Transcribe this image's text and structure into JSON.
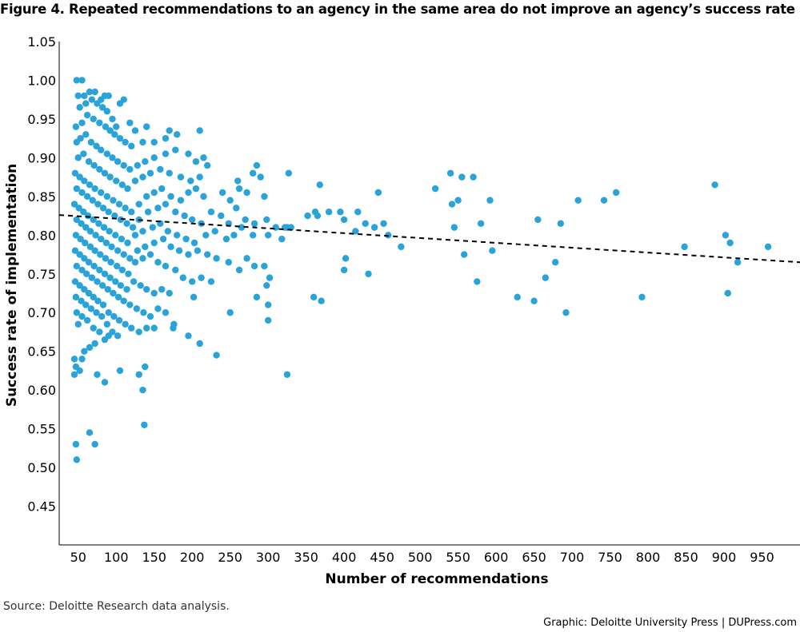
{
  "figure": {
    "title": "Figure 4. Repeated recommendations to an agency in the same area do not improve an agency’s success rate",
    "source": "Source: Deloitte Research data analysis.",
    "credit": "Graphic: Deloitte University Press  |  DUPress.com"
  },
  "chart_data": {
    "type": "scatter",
    "title": "Figure 4. Repeated recommendations to an agency in the same area do not improve an agency’s success rate",
    "xlabel": "Number of recommendations",
    "ylabel": "Success rate of implementation",
    "xlim": [
      25,
      1000
    ],
    "ylim": [
      0.4,
      1.05
    ],
    "xticks": [
      50,
      100,
      150,
      200,
      250,
      300,
      350,
      400,
      450,
      500,
      550,
      600,
      650,
      700,
      750,
      800,
      850,
      900,
      950
    ],
    "yticks": [
      "0.45",
      "0.50",
      "0.55",
      "0.60",
      "0.65",
      "0.70",
      "0.75",
      "0.80",
      "0.85",
      "0.90",
      "0.95",
      "1.00",
      "1.05"
    ],
    "grid": false,
    "colors": {
      "points": "#29a3d8",
      "trendline": "#000000"
    },
    "trendline": {
      "style": "dashed",
      "x": [
        25,
        1000
      ],
      "y": [
        0.826,
        0.765
      ]
    },
    "points": [
      [
        48,
        1.0
      ],
      [
        55,
        1.0
      ],
      [
        50,
        0.98
      ],
      [
        58,
        0.98
      ],
      [
        65,
        0.985
      ],
      [
        72,
        0.985
      ],
      [
        80,
        0.975
      ],
      [
        85,
        0.98
      ],
      [
        90,
        0.98
      ],
      [
        105,
        0.97
      ],
      [
        110,
        0.975
      ],
      [
        52,
        0.965
      ],
      [
        60,
        0.97
      ],
      [
        68,
        0.975
      ],
      [
        75,
        0.97
      ],
      [
        82,
        0.965
      ],
      [
        88,
        0.96
      ],
      [
        95,
        0.95
      ],
      [
        100,
        0.94
      ],
      [
        118,
        0.945
      ],
      [
        125,
        0.935
      ],
      [
        140,
        0.94
      ],
      [
        47,
        0.94
      ],
      [
        55,
        0.945
      ],
      [
        62,
        0.955
      ],
      [
        70,
        0.95
      ],
      [
        78,
        0.945
      ],
      [
        86,
        0.94
      ],
      [
        92,
        0.935
      ],
      [
        98,
        0.93
      ],
      [
        105,
        0.925
      ],
      [
        112,
        0.92
      ],
      [
        120,
        0.915
      ],
      [
        135,
        0.92
      ],
      [
        150,
        0.92
      ],
      [
        165,
        0.925
      ],
      [
        170,
        0.935
      ],
      [
        180,
        0.93
      ],
      [
        210,
        0.935
      ],
      [
        48,
        0.92
      ],
      [
        53,
        0.925
      ],
      [
        60,
        0.93
      ],
      [
        67,
        0.92
      ],
      [
        74,
        0.915
      ],
      [
        80,
        0.91
      ],
      [
        88,
        0.905
      ],
      [
        95,
        0.9
      ],
      [
        102,
        0.895
      ],
      [
        110,
        0.89
      ],
      [
        118,
        0.885
      ],
      [
        128,
        0.89
      ],
      [
        138,
        0.895
      ],
      [
        150,
        0.9
      ],
      [
        165,
        0.905
      ],
      [
        178,
        0.91
      ],
      [
        195,
        0.905
      ],
      [
        205,
        0.895
      ],
      [
        215,
        0.9
      ],
      [
        50,
        0.9
      ],
      [
        57,
        0.905
      ],
      [
        64,
        0.895
      ],
      [
        71,
        0.89
      ],
      [
        78,
        0.885
      ],
      [
        85,
        0.88
      ],
      [
        92,
        0.875
      ],
      [
        100,
        0.87
      ],
      [
        108,
        0.865
      ],
      [
        115,
        0.86
      ],
      [
        125,
        0.87
      ],
      [
        135,
        0.875
      ],
      [
        145,
        0.88
      ],
      [
        158,
        0.885
      ],
      [
        170,
        0.88
      ],
      [
        185,
        0.875
      ],
      [
        198,
        0.87
      ],
      [
        210,
        0.875
      ],
      [
        220,
        0.89
      ],
      [
        260,
        0.87
      ],
      [
        280,
        0.88
      ],
      [
        285,
        0.89
      ],
      [
        290,
        0.875
      ],
      [
        46,
        0.88
      ],
      [
        52,
        0.875
      ],
      [
        58,
        0.87
      ],
      [
        65,
        0.865
      ],
      [
        72,
        0.86
      ],
      [
        80,
        0.855
      ],
      [
        88,
        0.85
      ],
      [
        96,
        0.845
      ],
      [
        104,
        0.84
      ],
      [
        112,
        0.835
      ],
      [
        120,
        0.83
      ],
      [
        130,
        0.84
      ],
      [
        140,
        0.85
      ],
      [
        150,
        0.855
      ],
      [
        160,
        0.86
      ],
      [
        172,
        0.85
      ],
      [
        185,
        0.845
      ],
      [
        195,
        0.855
      ],
      [
        205,
        0.86
      ],
      [
        215,
        0.85
      ],
      [
        240,
        0.855
      ],
      [
        250,
        0.845
      ],
      [
        262,
        0.86
      ],
      [
        272,
        0.855
      ],
      [
        295,
        0.85
      ],
      [
        48,
        0.86
      ],
      [
        55,
        0.855
      ],
      [
        62,
        0.85
      ],
      [
        69,
        0.845
      ],
      [
        76,
        0.84
      ],
      [
        83,
        0.835
      ],
      [
        90,
        0.83
      ],
      [
        98,
        0.825
      ],
      [
        106,
        0.82
      ],
      [
        114,
        0.815
      ],
      [
        122,
        0.81
      ],
      [
        130,
        0.82
      ],
      [
        142,
        0.83
      ],
      [
        155,
        0.835
      ],
      [
        165,
        0.84
      ],
      [
        178,
        0.83
      ],
      [
        190,
        0.825
      ],
      [
        200,
        0.82
      ],
      [
        212,
        0.815
      ],
      [
        225,
        0.83
      ],
      [
        238,
        0.825
      ],
      [
        248,
        0.815
      ],
      [
        258,
        0.835
      ],
      [
        270,
        0.82
      ],
      [
        282,
        0.815
      ],
      [
        298,
        0.82
      ],
      [
        310,
        0.81
      ],
      [
        45,
        0.84
      ],
      [
        51,
        0.835
      ],
      [
        57,
        0.83
      ],
      [
        63,
        0.825
      ],
      [
        70,
        0.82
      ],
      [
        77,
        0.815
      ],
      [
        84,
        0.81
      ],
      [
        91,
        0.805
      ],
      [
        99,
        0.8
      ],
      [
        107,
        0.795
      ],
      [
        115,
        0.79
      ],
      [
        125,
        0.8
      ],
      [
        135,
        0.805
      ],
      [
        148,
        0.81
      ],
      [
        158,
        0.815
      ],
      [
        168,
        0.805
      ],
      [
        180,
        0.8
      ],
      [
        192,
        0.795
      ],
      [
        203,
        0.79
      ],
      [
        218,
        0.8
      ],
      [
        230,
        0.805
      ],
      [
        245,
        0.795
      ],
      [
        255,
        0.8
      ],
      [
        265,
        0.81
      ],
      [
        280,
        0.8
      ],
      [
        300,
        0.8
      ],
      [
        318,
        0.795
      ],
      [
        322,
        0.81
      ],
      [
        352,
        0.825
      ],
      [
        365,
        0.825
      ],
      [
        380,
        0.83
      ],
      [
        400,
        0.82
      ],
      [
        418,
        0.83
      ],
      [
        428,
        0.815
      ],
      [
        440,
        0.81
      ],
      [
        452,
        0.815
      ],
      [
        458,
        0.8
      ],
      [
        475,
        0.785
      ],
      [
        48,
        0.82
      ],
      [
        54,
        0.815
      ],
      [
        60,
        0.81
      ],
      [
        66,
        0.805
      ],
      [
        73,
        0.8
      ],
      [
        80,
        0.795
      ],
      [
        87,
        0.79
      ],
      [
        94,
        0.785
      ],
      [
        102,
        0.78
      ],
      [
        110,
        0.775
      ],
      [
        118,
        0.77
      ],
      [
        128,
        0.78
      ],
      [
        138,
        0.785
      ],
      [
        150,
        0.79
      ],
      [
        162,
        0.795
      ],
      [
        172,
        0.785
      ],
      [
        183,
        0.78
      ],
      [
        195,
        0.775
      ],
      [
        207,
        0.78
      ],
      [
        220,
        0.775
      ],
      [
        232,
        0.77
      ],
      [
        248,
        0.765
      ],
      [
        262,
        0.755
      ],
      [
        282,
        0.76
      ],
      [
        295,
        0.76
      ],
      [
        302,
        0.745
      ],
      [
        330,
        0.81
      ],
      [
        445,
        0.855
      ],
      [
        415,
        0.805
      ],
      [
        47,
        0.8
      ],
      [
        53,
        0.795
      ],
      [
        59,
        0.79
      ],
      [
        66,
        0.785
      ],
      [
        72,
        0.78
      ],
      [
        79,
        0.775
      ],
      [
        86,
        0.77
      ],
      [
        93,
        0.765
      ],
      [
        101,
        0.76
      ],
      [
        108,
        0.755
      ],
      [
        116,
        0.75
      ],
      [
        125,
        0.765
      ],
      [
        135,
        0.77
      ],
      [
        145,
        0.775
      ],
      [
        155,
        0.765
      ],
      [
        165,
        0.76
      ],
      [
        178,
        0.755
      ],
      [
        188,
        0.745
      ],
      [
        200,
        0.74
      ],
      [
        212,
        0.745
      ],
      [
        225,
        0.74
      ],
      [
        272,
        0.77
      ],
      [
        298,
        0.735
      ],
      [
        402,
        0.77
      ],
      [
        400,
        0.755
      ],
      [
        432,
        0.75
      ],
      [
        46,
        0.78
      ],
      [
        52,
        0.775
      ],
      [
        58,
        0.77
      ],
      [
        64,
        0.765
      ],
      [
        71,
        0.76
      ],
      [
        78,
        0.755
      ],
      [
        85,
        0.75
      ],
      [
        92,
        0.745
      ],
      [
        99,
        0.74
      ],
      [
        106,
        0.735
      ],
      [
        114,
        0.73
      ],
      [
        123,
        0.74
      ],
      [
        132,
        0.735
      ],
      [
        140,
        0.73
      ],
      [
        150,
        0.725
      ],
      [
        160,
        0.73
      ],
      [
        170,
        0.725
      ],
      [
        202,
        0.72
      ],
      [
        285,
        0.72
      ],
      [
        300,
        0.71
      ],
      [
        325,
        0.81
      ],
      [
        360,
        0.72
      ],
      [
        370,
        0.715
      ],
      [
        48,
        0.76
      ],
      [
        55,
        0.755
      ],
      [
        61,
        0.75
      ],
      [
        68,
        0.745
      ],
      [
        75,
        0.74
      ],
      [
        82,
        0.735
      ],
      [
        89,
        0.73
      ],
      [
        96,
        0.725
      ],
      [
        103,
        0.72
      ],
      [
        110,
        0.715
      ],
      [
        118,
        0.71
      ],
      [
        127,
        0.705
      ],
      [
        136,
        0.7
      ],
      [
        145,
        0.695
      ],
      [
        155,
        0.705
      ],
      [
        165,
        0.7
      ],
      [
        176,
        0.685
      ],
      [
        250,
        0.7
      ],
      [
        300,
        0.69
      ],
      [
        46,
        0.74
      ],
      [
        52,
        0.735
      ],
      [
        58,
        0.73
      ],
      [
        64,
        0.725
      ],
      [
        70,
        0.72
      ],
      [
        76,
        0.715
      ],
      [
        83,
        0.71
      ],
      [
        90,
        0.7
      ],
      [
        97,
        0.695
      ],
      [
        104,
        0.69
      ],
      [
        112,
        0.685
      ],
      [
        120,
        0.68
      ],
      [
        130,
        0.675
      ],
      [
        140,
        0.68
      ],
      [
        150,
        0.68
      ],
      [
        175,
        0.68
      ],
      [
        195,
        0.67
      ],
      [
        47,
        0.72
      ],
      [
        54,
        0.715
      ],
      [
        60,
        0.71
      ],
      [
        67,
        0.705
      ],
      [
        74,
        0.7
      ],
      [
        81,
        0.695
      ],
      [
        88,
        0.685
      ],
      [
        95,
        0.675
      ],
      [
        102,
        0.67
      ],
      [
        90,
        0.67
      ],
      [
        48,
        0.7
      ],
      [
        55,
        0.695
      ],
      [
        62,
        0.69
      ],
      [
        70,
        0.68
      ],
      [
        78,
        0.675
      ],
      [
        85,
        0.665
      ],
      [
        210,
        0.66
      ],
      [
        232,
        0.645
      ],
      [
        50,
        0.685
      ],
      [
        58,
        0.65
      ],
      [
        65,
        0.655
      ],
      [
        45,
        0.64
      ],
      [
        55,
        0.64
      ],
      [
        72,
        0.66
      ],
      [
        75,
        0.62
      ],
      [
        85,
        0.61
      ],
      [
        105,
        0.625
      ],
      [
        130,
        0.62
      ],
      [
        138,
        0.63
      ],
      [
        135,
        0.6
      ],
      [
        47,
        0.63
      ],
      [
        52,
        0.625
      ],
      [
        45,
        0.62
      ],
      [
        325,
        0.62
      ],
      [
        47,
        0.53
      ],
      [
        65,
        0.545
      ],
      [
        72,
        0.53
      ],
      [
        137,
        0.555
      ],
      [
        48,
        0.51
      ],
      [
        327,
        0.88
      ],
      [
        368,
        0.865
      ],
      [
        362,
        0.83
      ],
      [
        395,
        0.83
      ],
      [
        520,
        0.86
      ],
      [
        540,
        0.88
      ],
      [
        555,
        0.875
      ],
      [
        570,
        0.875
      ],
      [
        542,
        0.84
      ],
      [
        550,
        0.845
      ],
      [
        545,
        0.81
      ],
      [
        558,
        0.775
      ],
      [
        580,
        0.815
      ],
      [
        575,
        0.74
      ],
      [
        592,
        0.845
      ],
      [
        595,
        0.78
      ],
      [
        628,
        0.72
      ],
      [
        650,
        0.715
      ],
      [
        655,
        0.82
      ],
      [
        665,
        0.745
      ],
      [
        678,
        0.765
      ],
      [
        685,
        0.815
      ],
      [
        692,
        0.7
      ],
      [
        708,
        0.845
      ],
      [
        742,
        0.845
      ],
      [
        758,
        0.855
      ],
      [
        792,
        0.72
      ],
      [
        848,
        0.785
      ],
      [
        888,
        0.865
      ],
      [
        902,
        0.8
      ],
      [
        908,
        0.79
      ],
      [
        905,
        0.725
      ],
      [
        918,
        0.765
      ],
      [
        958,
        0.785
      ]
    ]
  }
}
